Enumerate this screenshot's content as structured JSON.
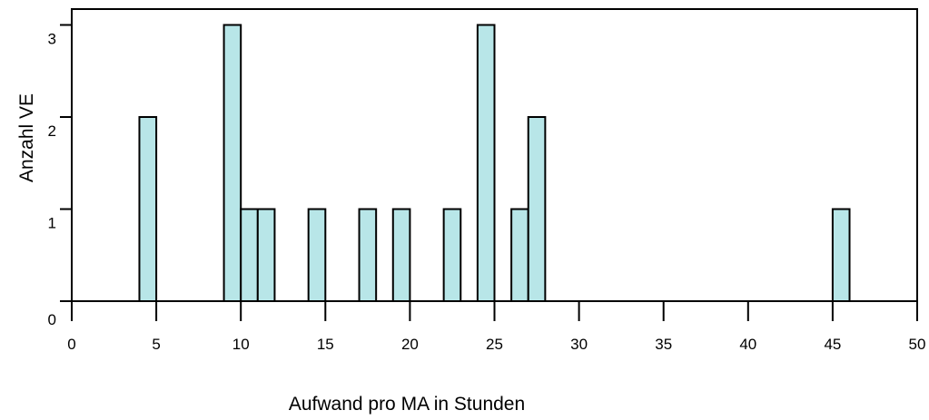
{
  "chart_data": {
    "type": "bar",
    "xlabel": "Aufwand pro MA in Stunden",
    "ylabel": "Anzahl VE",
    "xlim": [
      0,
      50
    ],
    "ylim": [
      0,
      3
    ],
    "bin_width": 1,
    "x_ticks": [
      "0",
      "5",
      "10",
      "15",
      "20",
      "25",
      "30",
      "35",
      "40",
      "45",
      "50"
    ],
    "y_ticks": [
      "0",
      "1",
      "2",
      "3"
    ],
    "bins": [
      {
        "x0": 4,
        "x1": 5,
        "value": 2
      },
      {
        "x0": 9,
        "x1": 10,
        "value": 3
      },
      {
        "x0": 10,
        "x1": 11,
        "value": 1
      },
      {
        "x0": 11,
        "x1": 12,
        "value": 1
      },
      {
        "x0": 14,
        "x1": 15,
        "value": 1
      },
      {
        "x0": 17,
        "x1": 18,
        "value": 1
      },
      {
        "x0": 19,
        "x1": 20,
        "value": 1
      },
      {
        "x0": 22,
        "x1": 23,
        "value": 1
      },
      {
        "x0": 24,
        "x1": 25,
        "value": 3
      },
      {
        "x0": 26,
        "x1": 27,
        "value": 1
      },
      {
        "x0": 27,
        "x1": 28,
        "value": 2
      },
      {
        "x0": 45,
        "x1": 46,
        "value": 1
      }
    ],
    "grid": false,
    "legend": "none",
    "colors": {
      "bar_fill": "#b8e6e8",
      "bar_stroke": "#000000"
    }
  }
}
